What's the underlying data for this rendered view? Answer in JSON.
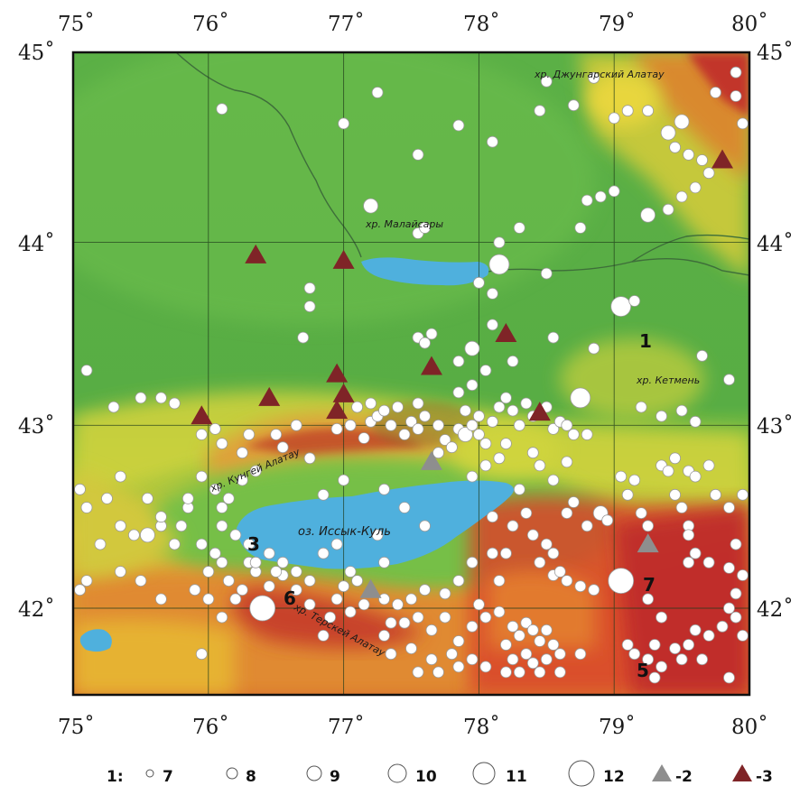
{
  "axes": {
    "x_ticks": [
      "75˚",
      "76˚",
      "77˚",
      "78˚",
      "79˚",
      "80˚"
    ],
    "y_ticks": [
      "45˚",
      "44˚",
      "43˚",
      "42˚"
    ]
  },
  "labels": {
    "dzungarian": "хр. Джунгарский Алатау",
    "malaysary": "хр. Малайсары",
    "ketmen": "хр. Кетмень",
    "kungey": "хр. Кунгей Алатау",
    "issyk_kul": "оз. Иссык-Куль",
    "terskey": "хр. Терскей Алатау"
  },
  "zones": [
    "1",
    "3",
    "6",
    "7",
    "5"
  ],
  "legend": {
    "prefix": "1:",
    "magnitudes": [
      "7",
      "8",
      "9",
      "10",
      "11",
      "12"
    ],
    "triangle_gray": "-2",
    "triangle_red": "-3"
  },
  "colors": {
    "lake": "#4fb0dd",
    "gray_triangle": "#8e8e8e",
    "red_triangle": "#7f2427",
    "event_fill": "#ffffff",
    "event_stroke": "#9a9a9a"
  },
  "markers": {
    "gray_triangles": [
      [
        77.65,
        42.8
      ],
      [
        77.2,
        42.1
      ],
      [
        79.25,
        42.35
      ]
    ],
    "red_triangles": [
      [
        76.35,
        43.93
      ],
      [
        77.0,
        43.9
      ],
      [
        77.65,
        43.32
      ],
      [
        78.2,
        43.5
      ],
      [
        79.8,
        44.45
      ],
      [
        75.95,
        43.05
      ],
      [
        76.45,
        43.15
      ],
      [
        76.95,
        43.28
      ],
      [
        77.0,
        43.17
      ],
      [
        76.95,
        43.08
      ],
      [
        78.45,
        43.07
      ]
    ]
  },
  "events": [
    [
      76.1,
      44.73,
      1
    ],
    [
      77.0,
      44.65,
      1
    ],
    [
      77.25,
      44.82,
      1
    ],
    [
      77.55,
      44.48,
      1
    ],
    [
      77.85,
      44.64,
      1
    ],
    [
      78.1,
      44.55,
      1
    ],
    [
      78.5,
      44.88,
      1
    ],
    [
      78.7,
      44.75,
      1
    ],
    [
      78.45,
      44.72,
      1
    ],
    [
      78.85,
      44.9,
      1
    ],
    [
      79.0,
      44.68,
      1
    ],
    [
      79.1,
      44.72,
      1
    ],
    [
      79.25,
      44.72,
      1
    ],
    [
      79.4,
      44.6,
      2
    ],
    [
      79.5,
      44.66,
      2
    ],
    [
      79.45,
      44.52,
      1
    ],
    [
      79.55,
      44.48,
      1
    ],
    [
      79.65,
      44.45,
      1
    ],
    [
      79.7,
      44.38,
      1
    ],
    [
      79.6,
      44.3,
      1
    ],
    [
      79.75,
      44.82,
      1
    ],
    [
      79.9,
      44.93,
      1
    ],
    [
      79.9,
      44.8,
      1
    ],
    [
      79.95,
      44.65,
      1
    ],
    [
      79.5,
      44.25,
      1
    ],
    [
      79.4,
      44.18,
      1
    ],
    [
      79.25,
      44.15,
      2
    ],
    [
      78.8,
      44.23,
      1
    ],
    [
      78.9,
      44.25,
      1
    ],
    [
      79.0,
      44.28,
      1
    ],
    [
      78.75,
      44.08,
      1
    ],
    [
      78.3,
      44.08,
      1
    ],
    [
      77.2,
      44.2,
      2
    ],
    [
      77.55,
      44.05,
      1
    ],
    [
      77.6,
      44.08,
      1
    ],
    [
      78.15,
      44.0,
      1
    ],
    [
      78.15,
      43.88,
      3
    ],
    [
      78.5,
      43.83,
      1
    ],
    [
      78.0,
      43.78,
      1
    ],
    [
      78.1,
      43.72,
      1
    ],
    [
      76.75,
      43.75,
      1
    ],
    [
      76.75,
      43.65,
      1
    ],
    [
      76.7,
      43.48,
      1
    ],
    [
      79.05,
      43.65,
      3
    ],
    [
      79.15,
      43.68,
      1
    ],
    [
      78.55,
      43.48,
      1
    ],
    [
      78.85,
      43.42,
      1
    ],
    [
      79.65,
      43.38,
      1
    ],
    [
      78.25,
      43.35,
      1
    ],
    [
      78.1,
      43.55,
      1
    ],
    [
      77.95,
      43.42,
      2
    ],
    [
      77.85,
      43.35,
      1
    ],
    [
      78.05,
      43.3,
      1
    ],
    [
      77.95,
      43.22,
      1
    ],
    [
      77.85,
      43.18,
      1
    ],
    [
      77.55,
      43.48,
      1
    ],
    [
      77.6,
      43.45,
      1
    ],
    [
      77.65,
      43.5,
      1
    ],
    [
      75.1,
      43.3,
      1
    ],
    [
      75.3,
      43.1,
      1
    ],
    [
      75.5,
      43.15,
      1
    ],
    [
      75.65,
      43.15,
      1
    ],
    [
      75.75,
      43.12,
      1
    ],
    [
      76.05,
      42.98,
      1
    ],
    [
      76.1,
      42.9,
      1
    ],
    [
      76.3,
      42.95,
      1
    ],
    [
      76.55,
      42.88,
      1
    ],
    [
      76.75,
      42.82,
      1
    ],
    [
      76.95,
      42.98,
      1
    ],
    [
      77.05,
      43.0,
      1
    ],
    [
      77.15,
      42.93,
      1
    ],
    [
      77.2,
      43.02,
      1
    ],
    [
      77.25,
      43.05,
      1
    ],
    [
      77.3,
      43.08,
      1
    ],
    [
      77.35,
      43.0,
      1
    ],
    [
      77.45,
      42.95,
      1
    ],
    [
      77.5,
      43.02,
      1
    ],
    [
      77.55,
      42.98,
      1
    ],
    [
      77.6,
      43.05,
      1
    ],
    [
      77.7,
      43.0,
      1
    ],
    [
      77.75,
      42.92,
      1
    ],
    [
      77.85,
      42.98,
      1
    ],
    [
      77.9,
      42.95,
      2
    ],
    [
      77.95,
      43.0,
      1
    ],
    [
      78.0,
      42.95,
      1
    ],
    [
      78.05,
      42.9,
      1
    ],
    [
      78.1,
      43.02,
      1
    ],
    [
      78.15,
      43.1,
      1
    ],
    [
      78.2,
      43.15,
      1
    ],
    [
      78.25,
      43.08,
      1
    ],
    [
      78.3,
      43.0,
      1
    ],
    [
      78.35,
      43.12,
      1
    ],
    [
      78.4,
      43.05,
      1
    ],
    [
      78.5,
      43.1,
      1
    ],
    [
      78.55,
      42.98,
      1
    ],
    [
      78.6,
      43.02,
      1
    ],
    [
      78.65,
      43.0,
      1
    ],
    [
      78.7,
      42.95,
      1
    ],
    [
      78.75,
      43.15,
      3
    ],
    [
      78.2,
      42.9,
      1
    ],
    [
      78.15,
      42.82,
      1
    ],
    [
      78.05,
      42.78,
      1
    ],
    [
      77.95,
      42.72,
      1
    ],
    [
      77.8,
      42.88,
      1
    ],
    [
      77.7,
      42.85,
      1
    ],
    [
      78.4,
      42.85,
      1
    ],
    [
      78.45,
      42.78,
      1
    ],
    [
      78.55,
      42.7,
      1
    ],
    [
      78.7,
      42.58,
      1
    ],
    [
      78.65,
      42.52,
      1
    ],
    [
      78.8,
      42.45,
      1
    ],
    [
      78.9,
      42.52,
      2
    ],
    [
      78.95,
      42.48,
      1
    ],
    [
      79.05,
      42.72,
      1
    ],
    [
      79.1,
      42.62,
      1
    ],
    [
      79.15,
      42.7,
      1
    ],
    [
      79.2,
      42.52,
      1
    ],
    [
      79.25,
      42.45,
      1
    ],
    [
      79.35,
      42.78,
      1
    ],
    [
      79.45,
      42.82,
      1
    ],
    [
      79.55,
      42.75,
      1
    ],
    [
      79.6,
      42.72,
      1
    ],
    [
      79.7,
      42.78,
      1
    ],
    [
      79.75,
      42.62,
      1
    ],
    [
      79.85,
      42.55,
      1
    ],
    [
      79.95,
      42.62,
      1
    ],
    [
      79.45,
      42.62,
      1
    ],
    [
      79.5,
      42.55,
      1
    ],
    [
      79.55,
      42.45,
      1
    ],
    [
      79.6,
      42.3,
      1
    ],
    [
      79.55,
      42.25,
      1
    ],
    [
      79.7,
      42.25,
      1
    ],
    [
      79.85,
      42.22,
      1
    ],
    [
      79.95,
      42.18,
      1
    ],
    [
      79.2,
      43.1,
      1
    ],
    [
      79.35,
      43.05,
      1
    ],
    [
      79.5,
      43.08,
      1
    ],
    [
      79.6,
      43.02,
      1
    ],
    [
      79.85,
      43.25,
      1
    ],
    [
      78.8,
      42.95,
      1
    ],
    [
      78.65,
      42.8,
      1
    ],
    [
      78.3,
      42.65,
      1
    ],
    [
      78.35,
      42.52,
      1
    ],
    [
      78.1,
      42.5,
      1
    ],
    [
      78.25,
      42.45,
      1
    ],
    [
      78.4,
      42.4,
      1
    ],
    [
      78.5,
      42.35,
      1
    ],
    [
      78.45,
      42.25,
      1
    ],
    [
      78.55,
      42.18,
      1
    ],
    [
      78.65,
      42.15,
      1
    ],
    [
      78.75,
      42.12,
      1
    ],
    [
      78.85,
      42.1,
      1
    ],
    [
      79.05,
      42.15,
      4
    ],
    [
      79.25,
      42.05,
      1
    ],
    [
      79.35,
      41.95,
      1
    ],
    [
      79.3,
      41.8,
      1
    ],
    [
      79.45,
      41.78,
      1
    ],
    [
      79.55,
      41.8,
      1
    ],
    [
      79.6,
      41.88,
      1
    ],
    [
      79.7,
      41.85,
      1
    ],
    [
      79.8,
      41.9,
      1
    ],
    [
      79.9,
      41.95,
      1
    ],
    [
      79.95,
      41.85,
      1
    ],
    [
      79.9,
      42.08,
      1
    ],
    [
      79.85,
      42.0,
      1
    ],
    [
      79.1,
      41.8,
      1
    ],
    [
      79.15,
      41.75,
      1
    ],
    [
      79.25,
      41.72,
      1
    ],
    [
      79.35,
      41.68,
      1
    ],
    [
      79.5,
      41.72,
      1
    ],
    [
      79.65,
      41.72,
      1
    ],
    [
      79.3,
      41.62,
      1
    ],
    [
      79.85,
      41.62,
      1
    ],
    [
      78.25,
      41.9,
      1
    ],
    [
      78.3,
      41.85,
      1
    ],
    [
      78.35,
      41.92,
      1
    ],
    [
      78.4,
      41.88,
      1
    ],
    [
      78.45,
      41.82,
      1
    ],
    [
      78.5,
      41.88,
      1
    ],
    [
      78.55,
      41.8,
      1
    ],
    [
      78.2,
      41.8,
      1
    ],
    [
      78.25,
      41.72,
      1
    ],
    [
      78.35,
      41.75,
      1
    ],
    [
      78.4,
      41.7,
      1
    ],
    [
      78.5,
      41.72,
      1
    ],
    [
      78.6,
      41.75,
      1
    ],
    [
      78.45,
      41.65,
      1
    ],
    [
      78.3,
      41.65,
      1
    ],
    [
      78.2,
      41.65,
      1
    ],
    [
      78.6,
      41.65,
      1
    ],
    [
      78.75,
      41.75,
      1
    ],
    [
      78.15,
      41.98,
      1
    ],
    [
      78.05,
      41.95,
      1
    ],
    [
      78.0,
      42.02,
      1
    ],
    [
      77.95,
      41.9,
      1
    ],
    [
      77.85,
      41.82,
      1
    ],
    [
      77.8,
      41.75,
      1
    ],
    [
      77.85,
      41.68,
      1
    ],
    [
      77.95,
      41.72,
      1
    ],
    [
      78.05,
      41.68,
      1
    ],
    [
      77.75,
      41.95,
      1
    ],
    [
      77.65,
      41.88,
      1
    ],
    [
      77.55,
      41.95,
      1
    ],
    [
      77.45,
      41.92,
      1
    ],
    [
      77.35,
      41.92,
      1
    ],
    [
      77.3,
      41.85,
      1
    ],
    [
      77.35,
      41.75,
      1
    ],
    [
      77.5,
      41.78,
      1
    ],
    [
      77.65,
      41.72,
      1
    ],
    [
      77.7,
      41.65,
      1
    ],
    [
      77.55,
      41.65,
      1
    ],
    [
      77.85,
      42.15,
      1
    ],
    [
      77.95,
      42.25,
      1
    ],
    [
      78.1,
      42.3,
      1
    ],
    [
      78.15,
      42.15,
      1
    ],
    [
      77.75,
      42.08,
      1
    ],
    [
      77.6,
      42.1,
      1
    ],
    [
      77.5,
      42.05,
      1
    ],
    [
      77.4,
      42.02,
      1
    ],
    [
      77.3,
      42.05,
      1
    ],
    [
      77.15,
      42.02,
      1
    ],
    [
      77.05,
      41.98,
      1
    ],
    [
      77.0,
      42.12,
      1
    ],
    [
      76.95,
      42.05,
      1
    ],
    [
      76.9,
      41.95,
      1
    ],
    [
      76.85,
      41.85,
      1
    ],
    [
      76.75,
      42.02,
      1
    ],
    [
      76.65,
      42.1,
      1
    ],
    [
      76.55,
      42.18,
      1
    ],
    [
      76.5,
      42.2,
      1
    ],
    [
      76.45,
      42.12,
      1
    ],
    [
      76.4,
      42.0,
      4
    ],
    [
      76.35,
      42.2,
      1
    ],
    [
      76.3,
      42.25,
      1
    ],
    [
      76.25,
      42.1,
      1
    ],
    [
      76.2,
      42.05,
      1
    ],
    [
      76.15,
      42.15,
      1
    ],
    [
      76.1,
      42.25,
      1
    ],
    [
      76.05,
      42.3,
      1
    ],
    [
      76.0,
      42.2,
      1
    ],
    [
      75.95,
      42.35,
      1
    ],
    [
      75.9,
      42.1,
      1
    ],
    [
      76.0,
      42.05,
      1
    ],
    [
      76.1,
      41.95,
      1
    ],
    [
      75.95,
      41.75,
      1
    ],
    [
      75.65,
      42.05,
      1
    ],
    [
      75.5,
      42.15,
      1
    ],
    [
      75.35,
      42.2,
      1
    ],
    [
      75.1,
      42.15,
      1
    ],
    [
      75.05,
      42.1,
      1
    ],
    [
      75.2,
      42.35,
      1
    ],
    [
      75.35,
      42.45,
      1
    ],
    [
      75.45,
      42.4,
      1
    ],
    [
      75.55,
      42.4,
      2
    ],
    [
      75.65,
      42.45,
      1
    ],
    [
      75.75,
      42.35,
      1
    ],
    [
      75.8,
      42.45,
      1
    ],
    [
      75.85,
      42.55,
      1
    ],
    [
      76.1,
      42.55,
      1
    ],
    [
      76.1,
      42.45,
      1
    ],
    [
      76.2,
      42.4,
      1
    ],
    [
      76.3,
      42.35,
      1
    ],
    [
      76.35,
      42.25,
      1
    ],
    [
      76.45,
      42.3,
      1
    ],
    [
      76.55,
      42.25,
      1
    ],
    [
      76.65,
      42.2,
      1
    ],
    [
      76.75,
      42.15,
      1
    ],
    [
      76.85,
      42.3,
      1
    ],
    [
      76.95,
      42.35,
      1
    ],
    [
      77.05,
      42.2,
      1
    ],
    [
      77.1,
      42.15,
      1
    ],
    [
      75.05,
      42.65,
      1
    ],
    [
      75.1,
      42.55,
      1
    ],
    [
      75.25,
      42.6,
      1
    ],
    [
      75.35,
      42.72,
      1
    ],
    [
      75.55,
      42.6,
      1
    ],
    [
      75.65,
      42.5,
      1
    ],
    [
      75.85,
      42.6,
      1
    ],
    [
      75.95,
      42.72,
      1
    ],
    [
      76.05,
      42.65,
      1
    ],
    [
      76.15,
      42.6,
      1
    ],
    [
      76.25,
      42.7,
      1
    ],
    [
      76.35,
      42.75,
      1
    ],
    [
      76.85,
      42.62,
      1
    ],
    [
      77.0,
      42.7,
      1
    ],
    [
      77.3,
      42.65,
      1
    ],
    [
      77.45,
      42.55,
      1
    ],
    [
      77.6,
      42.45,
      1
    ],
    [
      77.25,
      42.4,
      1
    ],
    [
      77.3,
      42.25,
      1
    ],
    [
      78.2,
      42.3,
      1
    ],
    [
      78.55,
      42.3,
      1
    ],
    [
      78.6,
      42.2,
      1
    ],
    [
      79.4,
      42.75,
      1
    ],
    [
      79.55,
      42.4,
      1
    ],
    [
      79.9,
      42.35,
      1
    ],
    [
      75.95,
      42.95,
      1
    ],
    [
      76.65,
      43.0,
      1
    ],
    [
      76.5,
      42.95,
      1
    ],
    [
      76.25,
      42.85,
      1
    ],
    [
      77.1,
      43.1,
      1
    ],
    [
      77.2,
      43.12,
      1
    ],
    [
      77.4,
      43.1,
      1
    ],
    [
      77.55,
      43.12,
      1
    ],
    [
      77.9,
      43.08,
      1
    ],
    [
      78.0,
      43.05,
      1
    ]
  ]
}
